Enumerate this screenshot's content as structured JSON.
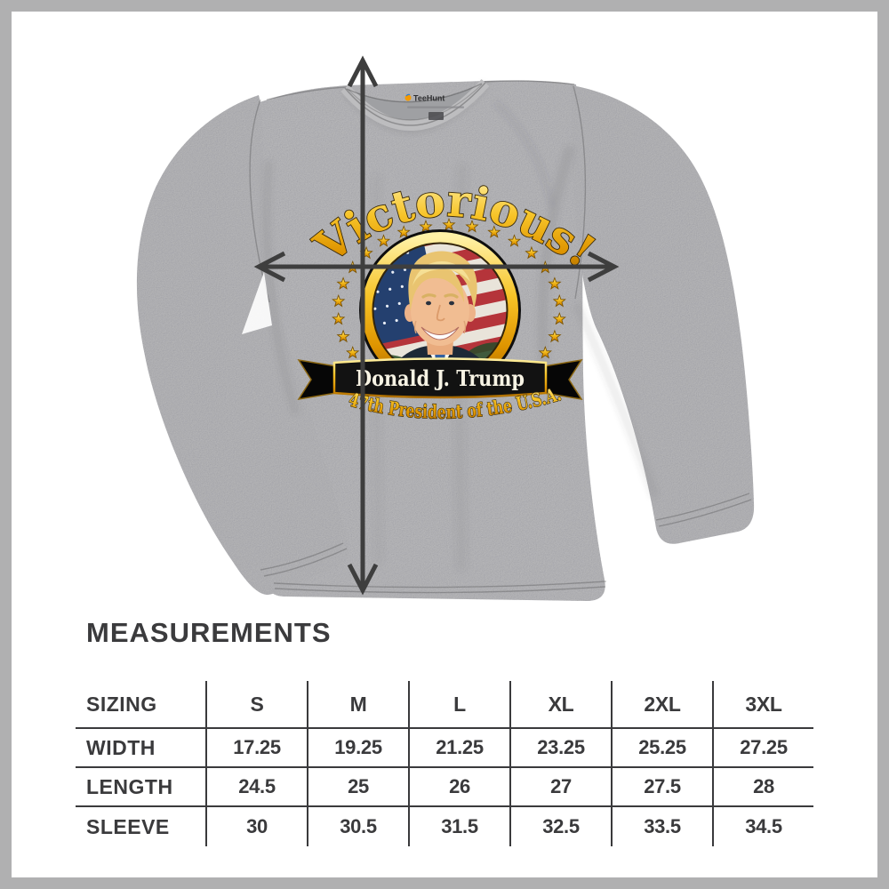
{
  "page": {
    "background": "#ffffff",
    "frame_color": "#b0b0b1"
  },
  "product": {
    "garment": "heather gray long-sleeve t-shirt",
    "collar_brand": "TeeHunt",
    "design": {
      "headline": "Victorious!",
      "banner_text": "Donald J. Trump",
      "subtitle": "47th President of the U.S.A."
    },
    "colors": {
      "shirt": "#b6b6b8",
      "arrow": "#3e3e3e",
      "gold": "#f0a800",
      "banner_black": "#121212"
    }
  },
  "measurements": {
    "title": "MEASUREMENTS",
    "table": {
      "header": [
        "SIZING",
        "S",
        "M",
        "L",
        "XL",
        "2XL",
        "3XL"
      ],
      "rows": [
        {
          "label": "WIDTH",
          "values": [
            "17.25",
            "19.25",
            "21.25",
            "23.25",
            "25.25",
            "27.25"
          ]
        },
        {
          "label": "LENGTH",
          "values": [
            "24.5",
            "25",
            "26",
            "27",
            "27.5",
            "28"
          ]
        },
        {
          "label": "SLEEVE",
          "values": [
            "30",
            "30.5",
            "31.5",
            "32.5",
            "33.5",
            "34.5"
          ]
        }
      ]
    }
  }
}
